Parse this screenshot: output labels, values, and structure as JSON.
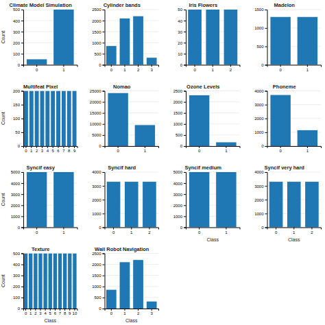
{
  "chart_data": [
    {
      "type": "bar",
      "title": "Climate Model Simulation",
      "categories": [
        "0",
        "1"
      ],
      "values": [
        50,
        500
      ],
      "ylabel": "Count",
      "ylim": [
        0,
        500
      ],
      "yticks": [
        0,
        100,
        200,
        300,
        400,
        500
      ],
      "grid": true
    },
    {
      "type": "bar",
      "title": "Cylinder bands",
      "categories": [
        "0",
        "1",
        "2",
        "3"
      ],
      "values": [
        850,
        2100,
        2200,
        320
      ],
      "ylim": [
        0,
        2500
      ],
      "yticks": [
        0,
        500,
        1000,
        1500,
        2000,
        2500
      ],
      "grid": true
    },
    {
      "type": "bar",
      "title": "Iris Flowers",
      "categories": [
        "0",
        "1",
        "2"
      ],
      "values": [
        50,
        50,
        50
      ],
      "ylim": [
        0,
        50
      ],
      "yticks": [
        0,
        10,
        20,
        30,
        40,
        50
      ],
      "grid": true
    },
    {
      "type": "bar",
      "title": "Madelon",
      "categories": [
        "0",
        "1"
      ],
      "values": [
        1300,
        1300
      ],
      "ylim": [
        0,
        1500
      ],
      "yticks": [
        0,
        500,
        1000,
        1500
      ],
      "grid": true
    },
    {
      "type": "bar",
      "title": "Multifeat Pixel",
      "categories": [
        "0",
        "1",
        "2",
        "3",
        "4",
        "5",
        "6",
        "7",
        "8",
        "9"
      ],
      "values": [
        200,
        200,
        200,
        200,
        200,
        200,
        200,
        200,
        200,
        200
      ],
      "ylabel": "Count",
      "ylim": [
        0,
        200
      ],
      "yticks": [
        0,
        50,
        100,
        150,
        200
      ],
      "grid": true
    },
    {
      "type": "bar",
      "title": "Nomao",
      "categories": [
        "0",
        "1"
      ],
      "values": [
        24000,
        9500
      ],
      "ylim": [
        0,
        25000
      ],
      "yticks": [
        0,
        5000,
        10000,
        15000,
        20000,
        25000
      ],
      "grid": true
    },
    {
      "type": "bar",
      "title": "Ozone Levels",
      "categories": [
        "0",
        "1"
      ],
      "values": [
        2300,
        170
      ],
      "ylim": [
        0,
        2500
      ],
      "yticks": [
        0,
        500,
        1000,
        1500,
        2000,
        2500
      ],
      "grid": true
    },
    {
      "type": "bar",
      "title": "Phoneme",
      "categories": [
        "0",
        "1"
      ],
      "values": [
        3700,
        1150
      ],
      "ylim": [
        0,
        4000
      ],
      "yticks": [
        0,
        1000,
        2000,
        3000,
        4000
      ],
      "grid": true
    },
    {
      "type": "bar",
      "title": "Syncif easy",
      "categories": [
        "0",
        "1"
      ],
      "values": [
        5000,
        5000
      ],
      "ylabel": "Count",
      "ylim": [
        0,
        5000
      ],
      "yticks": [
        0,
        1000,
        2000,
        3000,
        4000,
        5000
      ],
      "grid": true
    },
    {
      "type": "bar",
      "title": "Syncif hard",
      "categories": [
        "0",
        "1",
        "2"
      ],
      "values": [
        3300,
        3300,
        3300
      ],
      "ylim": [
        0,
        4000
      ],
      "yticks": [
        0,
        1000,
        2000,
        3000,
        4000
      ],
      "grid": true
    },
    {
      "type": "bar",
      "title": "Syncif medium",
      "categories": [
        "0",
        "1"
      ],
      "values": [
        5000,
        5000
      ],
      "xlabel": "Class",
      "ylim": [
        0,
        5000
      ],
      "yticks": [
        0,
        1000,
        2000,
        3000,
        4000,
        5000
      ],
      "grid": true
    },
    {
      "type": "bar",
      "title": "Syncif very hard",
      "categories": [
        "0",
        "1",
        "2"
      ],
      "values": [
        3300,
        3300,
        3300
      ],
      "xlabel": "Class",
      "ylim": [
        0,
        4000
      ],
      "yticks": [
        0,
        1000,
        2000,
        3000,
        4000
      ],
      "grid": true
    },
    {
      "type": "bar",
      "title": "Texture",
      "categories": [
        "0",
        "1",
        "2",
        "3",
        "4",
        "5",
        "6",
        "7",
        "8",
        "9",
        "10"
      ],
      "values": [
        500,
        500,
        500,
        500,
        500,
        500,
        500,
        500,
        500,
        500,
        500
      ],
      "ylabel": "Count",
      "xlabel": "Class",
      "ylim": [
        0,
        500
      ],
      "yticks": [
        0,
        100,
        200,
        300,
        400,
        500
      ],
      "grid": true
    },
    {
      "type": "bar",
      "title": "Wall Robot Navigation",
      "categories": [
        "0",
        "1",
        "2",
        "3"
      ],
      "values": [
        850,
        2100,
        2200,
        320
      ],
      "xlabel": "Class",
      "ylim": [
        0,
        2500
      ],
      "yticks": [
        0,
        500,
        1000,
        1500,
        2000,
        2500
      ],
      "grid": true
    }
  ]
}
